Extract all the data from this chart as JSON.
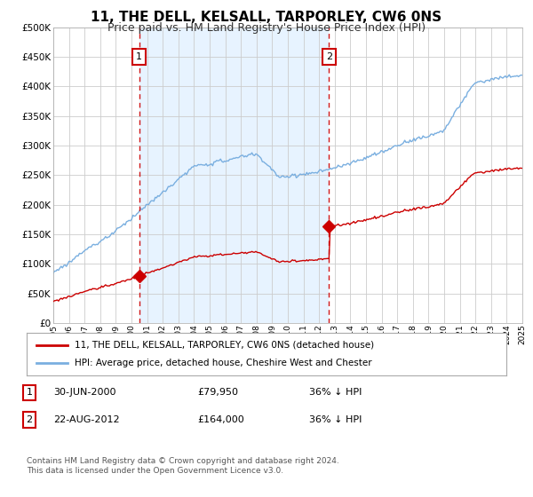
{
  "title": "11, THE DELL, KELSALL, TARPORLEY, CW6 0NS",
  "subtitle": "Price paid vs. HM Land Registry's House Price Index (HPI)",
  "legend_line1": "11, THE DELL, KELSALL, TARPORLEY, CW6 0NS (detached house)",
  "legend_line2": "HPI: Average price, detached house, Cheshire West and Chester",
  "footnote": "Contains HM Land Registry data © Crown copyright and database right 2024.\nThis data is licensed under the Open Government Licence v3.0.",
  "point1_label": "1",
  "point1_date": "30-JUN-2000",
  "point1_price": "£79,950",
  "point1_hpi": "36% ↓ HPI",
  "point1_x": 2000.5,
  "point1_y": 79950,
  "point2_label": "2",
  "point2_date": "22-AUG-2012",
  "point2_price": "£164,000",
  "point2_hpi": "36% ↓ HPI",
  "point2_x": 2012.64,
  "point2_y": 164000,
  "red_color": "#cc0000",
  "blue_color": "#7aafe0",
  "shade_color": "#ddeeff",
  "background_color": "#ffffff",
  "grid_color": "#cccccc",
  "ylim": [
    0,
    500000
  ],
  "xlim": [
    1995,
    2025
  ],
  "yticks": [
    0,
    50000,
    100000,
    150000,
    200000,
    250000,
    300000,
    350000,
    400000,
    450000,
    500000
  ]
}
